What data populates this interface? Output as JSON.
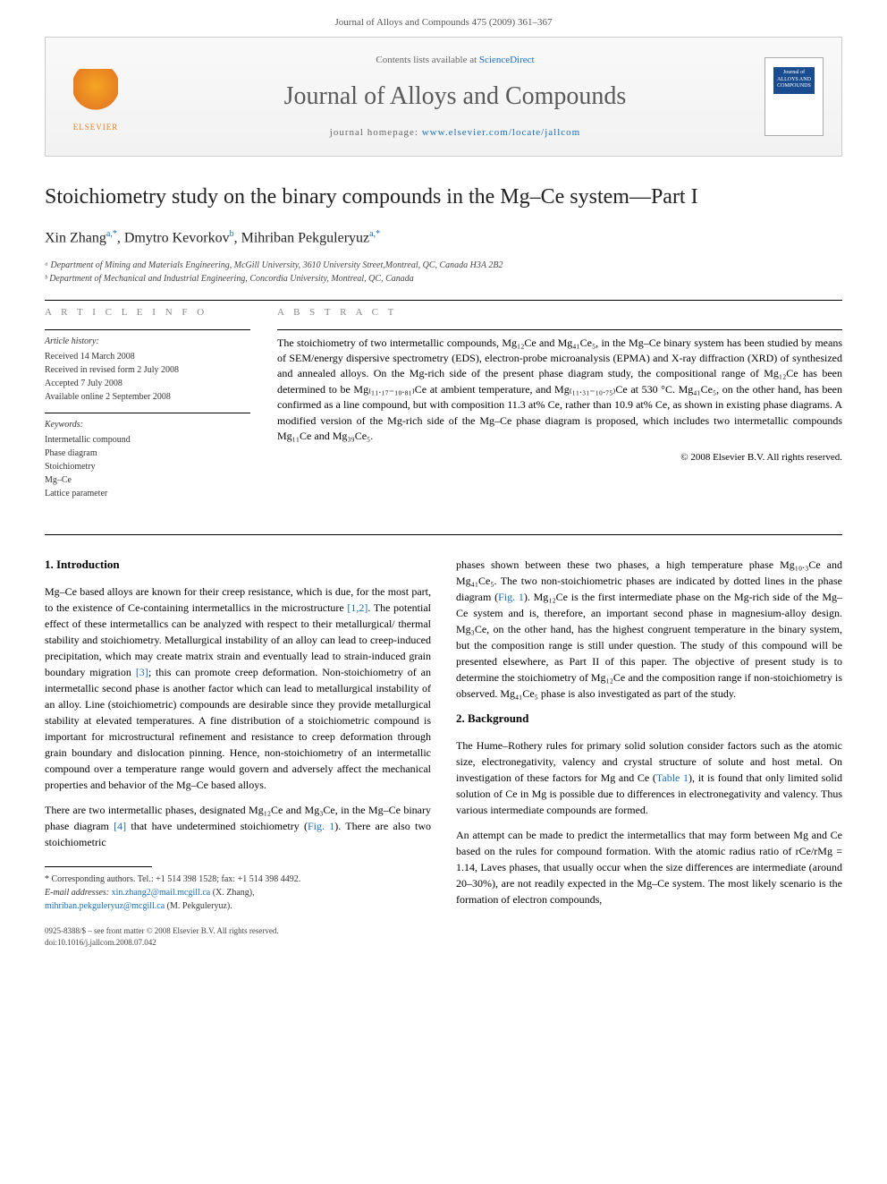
{
  "page_header": "Journal of Alloys and Compounds 475 (2009) 361–367",
  "masthead": {
    "publisher": "ELSEVIER",
    "contents_prefix": "Contents lists available at ",
    "contents_link": "ScienceDirect",
    "journal_name": "Journal of Alloys and Compounds",
    "homepage_prefix": "journal homepage: ",
    "homepage_link": "www.elsevier.com/locate/jallcom",
    "cover_text": "Journal of ALLOYS AND COMPOUNDS"
  },
  "article": {
    "title": "Stoichiometry study on the binary compounds in the Mg–Ce system—Part I",
    "authors_html": "Xin Zhang<sup>a,*</sup>, Dmytro Kevorkov<sup>b</sup>, Mihriban Pekguleryuz<sup>a,*</sup>",
    "affiliations": [
      "ᵃ Department of Mining and Materials Engineering, McGill University, 3610 University Street,Montreal, QC, Canada H3A 2B2",
      "ᵇ Department of Mechanical and Industrial Engineering, Concordia University, Montreal, QC, Canada"
    ]
  },
  "info": {
    "heading": "A R T I C L E   I N F O",
    "history_label": "Article history:",
    "history": "Received 14 March 2008\nReceived in revised form 2 July 2008\nAccepted 7 July 2008\nAvailable online 2 September 2008",
    "keywords_label": "Keywords:",
    "keywords": "Intermetallic compound\nPhase diagram\nStoichiometry\nMg–Ce\nLattice parameter"
  },
  "abstract": {
    "heading": "A B S T R A C T",
    "text": "The stoichiometry of two intermetallic compounds, Mg₁₂Ce and Mg₄₁Ce₅, in the Mg–Ce binary system has been studied by means of SEM/energy dispersive spectrometry (EDS), electron-probe microanalysis (EPMA) and X-ray diffraction (XRD) of synthesized and annealed alloys. On the Mg-rich side of the present phase diagram study, the compositional range of Mg₁₂Ce has been determined to be Mg₍₁₁.₁₇₋₁₀.₈₁₎Ce at ambient temperature, and Mg₍₁₁.₃₁₋₁₀.₇₅₎Ce at 530 °C. Mg₄₁Ce₅, on the other hand, has been confirmed as a line compound, but with composition 11.3 at% Ce, rather than 10.9 at% Ce, as shown in existing phase diagrams. A modified version of the Mg-rich side of the Mg–Ce phase diagram is proposed, which includes two intermetallic compounds Mg₁₁Ce and Mg₃₉Ce₅.",
    "copyright": "© 2008 Elsevier B.V. All rights reserved."
  },
  "sections": {
    "intro_heading": "1. Introduction",
    "intro_p1": "Mg–Ce based alloys are known for their creep resistance, which is due, for the most part, to the existence of Ce-containing intermetallics in the microstructure [1,2]. The potential effect of these intermetallics can be analyzed with respect to their metallurgical/ thermal stability and stoichiometry. Metallurgical instability of an alloy can lead to creep-induced precipitation, which may create matrix strain and eventually lead to strain-induced grain boundary migration [3]; this can promote creep deformation. Non-stoichiometry of an intermetallic second phase is another factor which can lead to metallurgical instability of an alloy. Line (stoichiometric) compounds are desirable since they provide metallurgical stability at elevated temperatures. A fine distribution of a stoichiometric compound is important for microstructural refinement and resistance to creep deformation through grain boundary and dislocation pinning. Hence, non-stoichiometry of an intermetallic compound over a temperature range would govern and adversely affect the mechanical properties and behavior of the Mg–Ce based alloys.",
    "intro_p2": "There are two intermetallic phases, designated Mg₁₂Ce and Mg₃Ce, in the Mg–Ce binary phase diagram [4] that have undetermined stoichiometry (Fig. 1). There are also two stoichiometric",
    "intro_p3": "phases shown between these two phases, a high temperature phase Mg₁₀.₃Ce and Mg₄₁Ce₅. The two non-stoichiometric phases are indicated by dotted lines in the phase diagram (Fig. 1). Mg₁₂Ce is the first intermediate phase on the Mg-rich side of the Mg–Ce system and is, therefore, an important second phase in magnesium-alloy design. Mg₃Ce, on the other hand, has the highest congruent temperature in the binary system, but the composition range is still under question. The study of this compound will be presented elsewhere, as Part II of this paper. The objective of present study is to determine the stoichiometry of Mg₁₂Ce and the composition range if non-stoichiometry is observed. Mg₄₁Ce₅ phase is also investigated as part of the study.",
    "bg_heading": "2. Background",
    "bg_p1": "The Hume–Rothery rules for primary solid solution consider factors such as the atomic size, electronegativity, valency and crystal structure of solute and host metal. On investigation of these factors for Mg and Ce (Table 1), it is found that only limited solid solution of Ce in Mg is possible due to differences in electronegativity and valency. Thus various intermediate compounds are formed.",
    "bg_p2": "An attempt can be made to predict the intermetallics that may form between Mg and Ce based on the rules for compound formation. With the atomic radius ratio of rCe/rMg = 1.14, Laves phases, that usually occur when the size differences are intermediate (around 20–30%), are not readily expected in the Mg–Ce system. The most likely scenario is the formation of electron compounds,"
  },
  "footnotes": {
    "corr_label": "* Corresponding authors. Tel.: +1 514 398 1528; fax: +1 514 398 4492.",
    "email_label": "E-mail addresses:",
    "email1": "xin.zhang2@mail.mcgill.ca",
    "email1_who": " (X. Zhang),",
    "email2": "mihriban.pekguleryuz@mcgill.ca",
    "email2_who": " (M. Pekguleryuz)."
  },
  "footer": {
    "line1": "0925-8388/$ – see front matter © 2008 Elsevier B.V. All rights reserved.",
    "line2": "doi:10.1016/j.jallcom.2008.07.042"
  },
  "colors": {
    "link": "#1a6db5",
    "publisher": "#e67e22",
    "cover_bg": "#1a4d8f",
    "text": "#000000",
    "muted": "#666666"
  }
}
